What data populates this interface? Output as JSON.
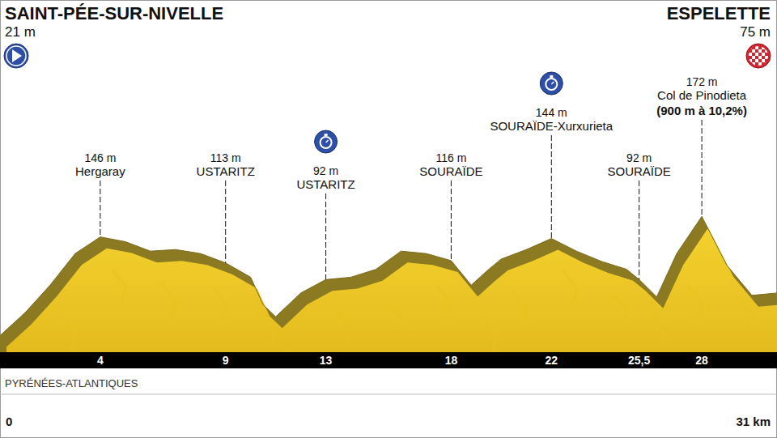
{
  "chart_data": {
    "type": "area",
    "start": {
      "name": "SAINT-PÉE-SUR-NIVELLE",
      "elevation_label": "21 m"
    },
    "finish": {
      "name": "ESPELETTE",
      "elevation_label": "75 m"
    },
    "region": "PYRÉNÉES-ATLANTIQUES",
    "x": [
      0,
      1,
      2,
      3,
      4,
      5,
      6,
      7,
      8,
      9,
      10,
      10.5,
      11,
      12,
      13,
      14,
      15,
      16,
      17,
      18,
      18.8,
      19.5,
      20,
      21,
      22,
      23,
      24,
      25,
      25.5,
      26.2,
      27,
      28,
      29,
      30,
      31
    ],
    "series": [
      {
        "color": "#f3d12e",
        "values": [
          21,
          50,
          85,
          125,
          146,
          140,
          128,
          130,
          125,
          113,
          95,
          60,
          45,
          75,
          92,
          95,
          105,
          128,
          125,
          116,
          85,
          105,
          118,
          130,
          144,
          128,
          115,
          105,
          92,
          70,
          125,
          172,
          110,
          72,
          75
        ]
      }
    ],
    "xlim": [
      0,
      31
    ],
    "ylim": [
      0,
      400
    ],
    "xticks": [
      0,
      4,
      9,
      13,
      18,
      22,
      {
        "value": 25.5,
        "label": "25,5"
      },
      28,
      {
        "value": 31,
        "label": "31 km"
      }
    ],
    "tick_labels": "x",
    "waypoints": {
      "x": [
        4,
        9,
        13,
        18,
        22,
        25.5,
        28
      ],
      "values": [
        146,
        113,
        92,
        116,
        144,
        92,
        172
      ],
      "value_labels": [
        "146 m",
        "113 m",
        "92 m",
        "116 m",
        "144 m",
        "92 m",
        "172 m"
      ],
      "names": [
        "Hergaray",
        "USTARITZ",
        "USTARITZ",
        "SOURAÏDE",
        "SOURAÏDE-Xurxurieta",
        "SOURAÏDE",
        "Col de Pinodieta"
      ],
      "notes": [
        null,
        null,
        null,
        null,
        null,
        null,
        "(900 m à 10,2%)"
      ],
      "intermediate_time": [
        false,
        false,
        true,
        false,
        true,
        false,
        false
      ]
    }
  }
}
